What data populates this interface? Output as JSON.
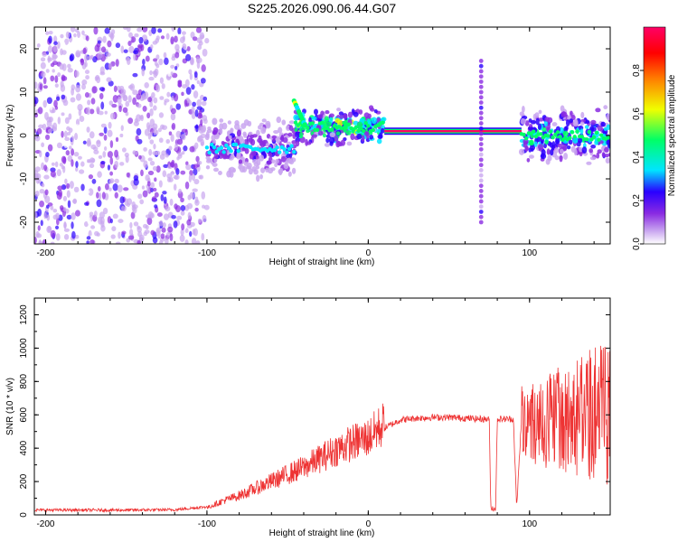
{
  "title": "S225.2026.090.06.44.G07",
  "chart_data": [
    {
      "type": "heatmap",
      "name": "spectrogram",
      "xlabel": "Height of straight line (km)",
      "ylabel": "Frequency (Hz)",
      "xlim": [
        -207,
        150
      ],
      "ylim": [
        -25,
        25
      ],
      "xticks": [
        -200,
        -100,
        0,
        100
      ],
      "yticks": [
        20,
        10,
        0,
        -10,
        -20
      ],
      "colorbar": {
        "label": "Normalized spectral amplitude",
        "range": [
          0.0,
          1.0
        ],
        "ticks": [
          0.0,
          0.2,
          0.4,
          0.6,
          0.8
        ],
        "tick_labels": [
          "0.0",
          "0.2",
          "0.4",
          "0.6",
          "0.8"
        ],
        "colormap": [
          "#ffffff",
          "#c9a6f0",
          "#8a2be2",
          "#2a00ff",
          "#00e5ff",
          "#00ff66",
          "#f0ff00",
          "#ff7f00",
          "#ff0000",
          "#ff0066"
        ]
      },
      "features": [
        {
          "label": "noise",
          "x_range": [
            -207,
            -100
          ],
          "freq_range": [
            -25,
            25
          ],
          "amplitude": 0.1
        },
        {
          "label": "carrier",
          "x_range": [
            -100,
            -45
          ],
          "freq_hz": -3,
          "amplitude": 0.3
        },
        {
          "label": "carrier",
          "x_range": [
            -45,
            10
          ],
          "freq_hz": 2,
          "amplitude": 0.6
        },
        {
          "label": "carrier",
          "x_range": [
            10,
            95
          ],
          "freq_hz": 1,
          "amplitude": 0.95
        },
        {
          "label": "carrier",
          "x_range": [
            95,
            150
          ],
          "freq_hz": 0,
          "amplitude": 0.5
        },
        {
          "label": "spike",
          "x": 70,
          "freq_range": [
            -20,
            18
          ],
          "amplitude": 0.25
        }
      ]
    },
    {
      "type": "line",
      "name": "snr",
      "xlabel": "Height of straight line (km)",
      "ylabel": "SNR (10 * v/v)",
      "xlim": [
        -207,
        150
      ],
      "ylim": [
        0,
        1300
      ],
      "xticks": [
        -200,
        -100,
        0,
        100
      ],
      "yticks": [
        0,
        200,
        400,
        600,
        800,
        1000,
        1200
      ],
      "color": "#ee3333",
      "series": [
        {
          "name": "SNR",
          "x": [
            -207,
            -150,
            -120,
            -100,
            -90,
            -80,
            -70,
            -60,
            -50,
            -40,
            -30,
            -20,
            -10,
            0,
            10,
            20,
            30,
            40,
            50,
            60,
            70,
            75,
            76,
            79,
            80,
            90,
            92,
            95,
            100,
            110,
            120,
            130,
            140,
            150
          ],
          "y": [
            20,
            20,
            22,
            40,
            80,
            110,
            150,
            190,
            230,
            270,
            320,
            370,
            410,
            440,
            520,
            570,
            580,
            585,
            585,
            580,
            575,
            575,
            40,
            40,
            575,
            575,
            40,
            575,
            550,
            560,
            570,
            580,
            600,
            600
          ]
        }
      ]
    }
  ]
}
